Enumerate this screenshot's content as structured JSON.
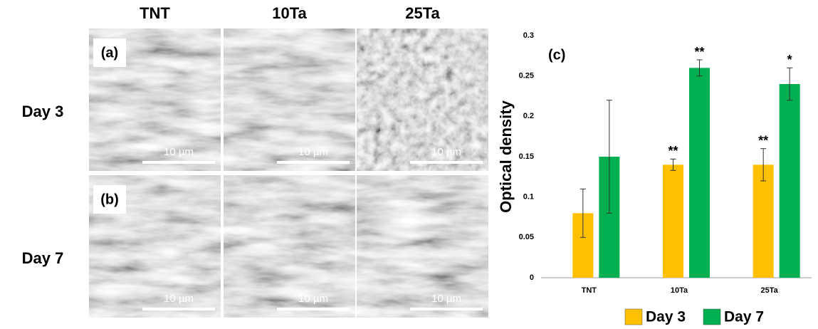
{
  "figure": {
    "columns": [
      "TNT",
      "10Ta",
      "25Ta"
    ],
    "rows": [
      "Day 3",
      "Day 7"
    ],
    "panels": [
      "(a)",
      "(b)"
    ],
    "scale_bars": [
      [
        "10 µm",
        "10 µm",
        "10 µm"
      ],
      [
        "10 µm",
        "10 µm",
        "10 µm"
      ]
    ]
  },
  "chart_data": {
    "type": "bar",
    "panel_label": "(c)",
    "y_label": "Optical density",
    "categories": [
      "TNT",
      "10Ta",
      "25Ta"
    ],
    "series": [
      {
        "name": "Day 3",
        "color": "#ffc000",
        "values": [
          0.08,
          0.14,
          0.14
        ],
        "errors": [
          0.03,
          0.007,
          0.02
        ],
        "annotations": [
          null,
          "**",
          "**"
        ]
      },
      {
        "name": "Day 7",
        "color": "#00b050",
        "values": [
          0.15,
          0.26,
          0.24
        ],
        "errors": [
          0.07,
          0.01,
          0.02
        ],
        "annotations": [
          null,
          "**",
          "*"
        ]
      }
    ],
    "ylim": [
      0,
      0.3
    ],
    "yticks": [
      0,
      0.05,
      0.1,
      0.15,
      0.2,
      0.25,
      0.3
    ],
    "grid": false,
    "legend": "bottom"
  }
}
